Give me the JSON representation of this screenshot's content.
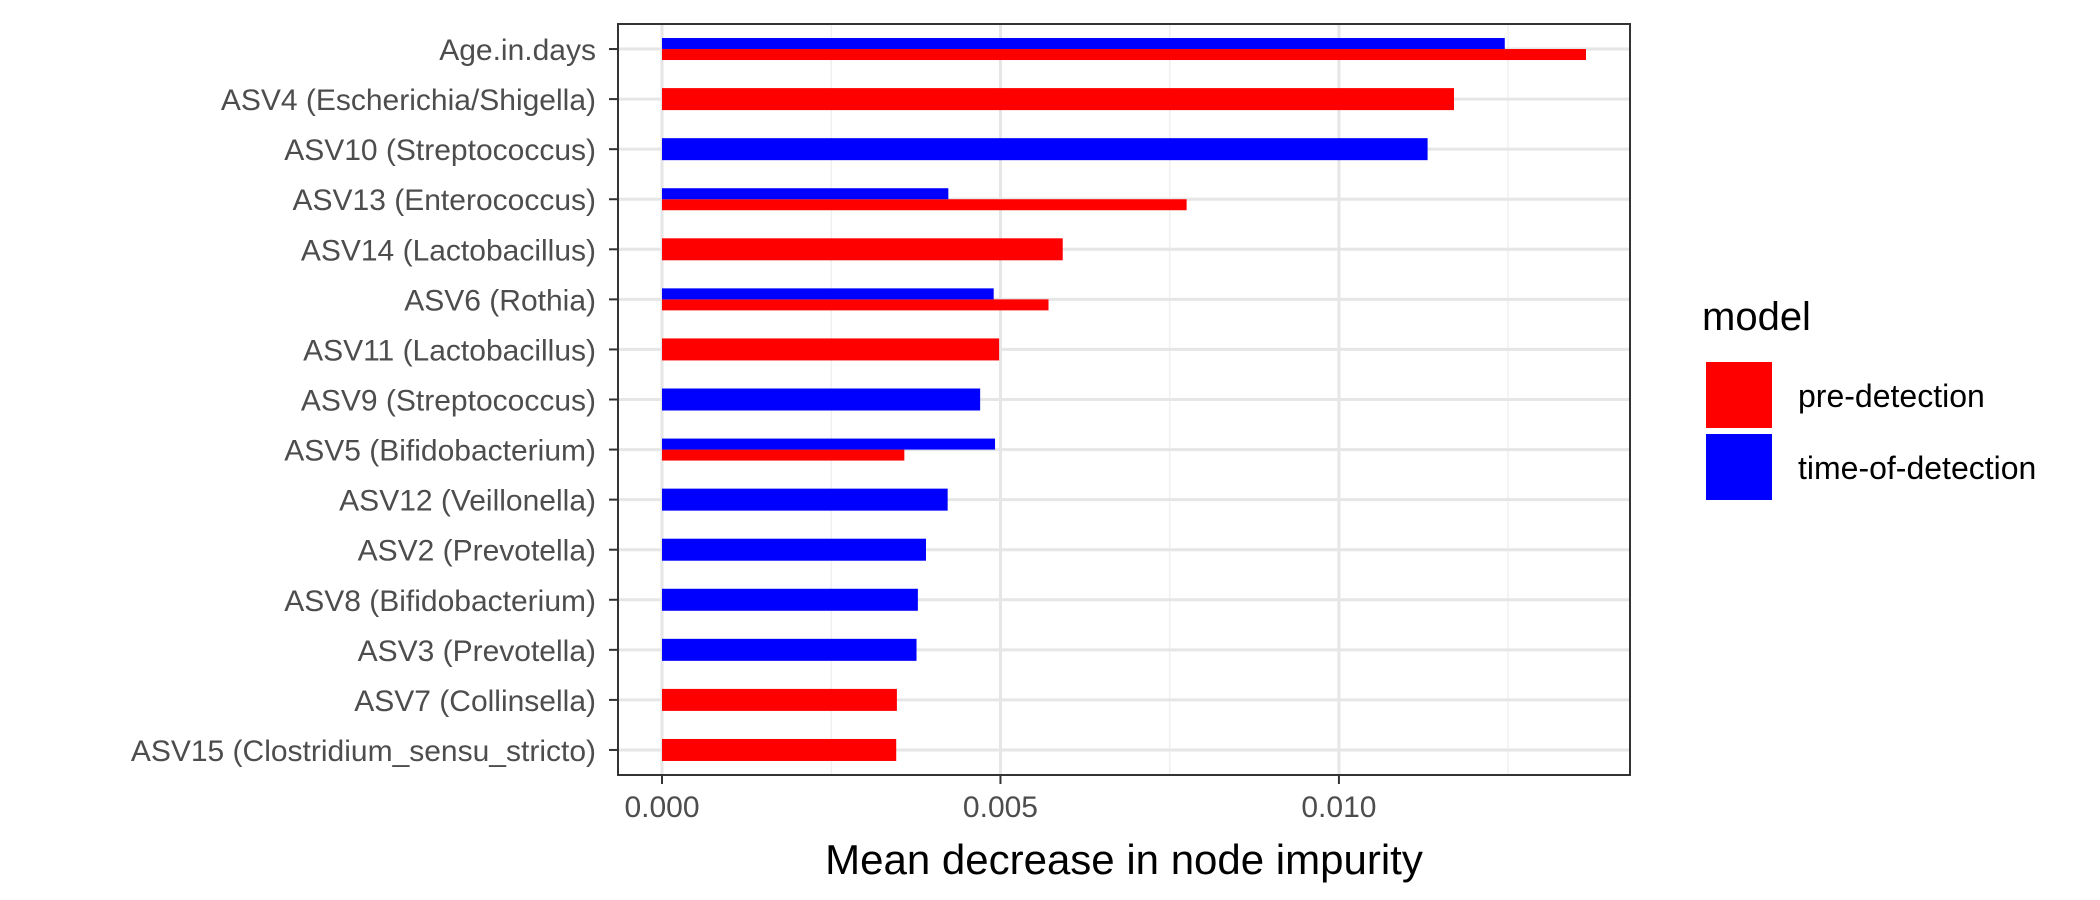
{
  "chart_data": {
    "type": "bar",
    "orientation": "horizontal",
    "xlabel": "Mean decrease in node impurity",
    "ylabel": "",
    "xlim": [
      -0.00065,
      0.0143
    ],
    "x_ticks": [
      0.0,
      0.005,
      0.01
    ],
    "x_tick_labels": [
      "0.000",
      "0.005",
      "0.010"
    ],
    "grid": true,
    "legend": {
      "title": "model",
      "position": "right",
      "entries": [
        {
          "label": "pre-detection",
          "color": "#ff0000"
        },
        {
          "label": "time-of-detection",
          "color": "#0000ff"
        }
      ]
    },
    "categories": [
      "Age.in.days",
      "ASV4 (Escherichia/Shigella)",
      "ASV10 (Streptococcus)",
      "ASV13 (Enterococcus)",
      "ASV14 (Lactobacillus)",
      "ASV6 (Rothia)",
      "ASV11 (Lactobacillus)",
      "ASV9 (Streptococcus)",
      "ASV5 (Bifidobacterium)",
      "ASV12 (Veillonella)",
      "ASV2 (Prevotella)",
      "ASV8 (Bifidobacterium)",
      "ASV3 (Prevotella)",
      "ASV7 (Collinsella)",
      "ASV15 (Clostridium_sensu_stricto)"
    ],
    "series": [
      {
        "name": "pre-detection",
        "color": "#ff0000",
        "values": [
          0.01365,
          0.0117,
          null,
          0.00775,
          0.00592,
          0.00571,
          0.00498,
          null,
          0.00358,
          null,
          null,
          null,
          null,
          0.00347,
          0.00346
        ]
      },
      {
        "name": "time-of-detection",
        "color": "#0000ff",
        "values": [
          0.01245,
          null,
          0.01131,
          0.00423,
          null,
          0.0049,
          null,
          0.0047,
          0.00492,
          0.00422,
          0.0039,
          0.00378,
          0.00376,
          null,
          null
        ]
      }
    ]
  }
}
